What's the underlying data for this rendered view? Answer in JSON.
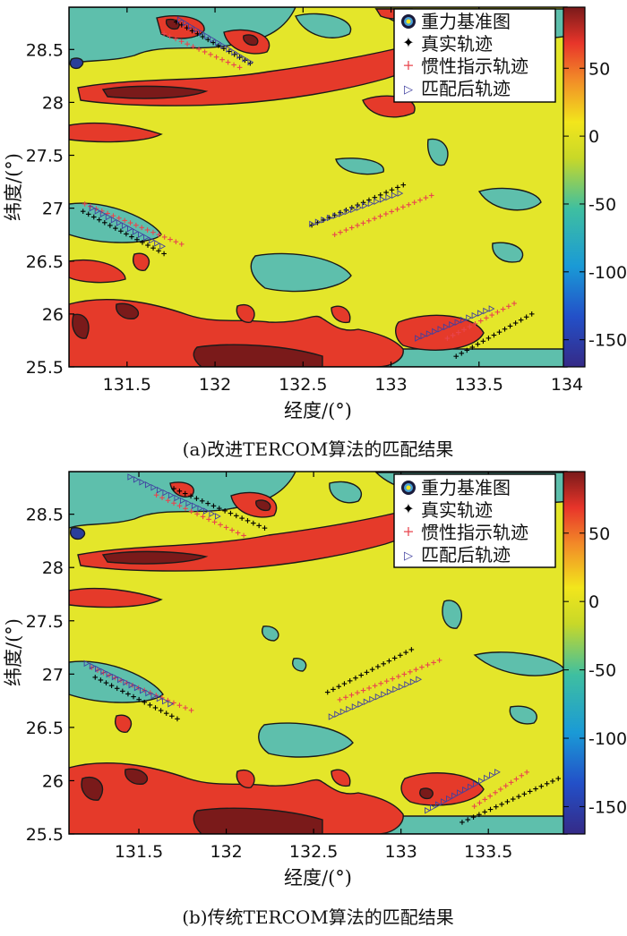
{
  "chart_data": [
    {
      "type": "contour",
      "title": "",
      "caption": "(a)改进TERCOM算法的匹配结果",
      "xlabel": "经度/(°)",
      "ylabel": "纬度/(°)",
      "xlim": [
        131.17,
        134.0
      ],
      "ylim": [
        25.5,
        28.9
      ],
      "xticks": [
        131.5,
        132,
        132.5,
        133,
        133.5,
        134
      ],
      "xtick_labels": [
        "131.5",
        "132",
        "132.5",
        "133",
        "133.5",
        "134"
      ],
      "yticks": [
        25.5,
        26,
        26.5,
        27,
        27.5,
        28,
        28.5
      ],
      "ytick_labels": [
        "25.5",
        "26",
        "26.5",
        "27",
        "27.5",
        "28",
        "28.5"
      ],
      "colorbar": {
        "ticks": [
          50,
          0,
          -50,
          -100,
          -150
        ],
        "tick_labels": [
          "50",
          "0",
          "-50",
          "-100",
          "-150"
        ],
        "range": [
          -170,
          95
        ]
      },
      "legend": {
        "placement": "top-right",
        "entries": [
          "重力基准图",
          "真实轨迹",
          "惯性指示轨迹",
          "匹配后轨迹"
        ]
      },
      "series": [
        {
          "name": "真实轨迹",
          "marker": "+",
          "color": "#000000",
          "segments": [
            [
              [
                131.78,
                28.76
              ],
              [
                132.2,
                28.37
              ]
            ],
            [
              [
                131.25,
                26.97
              ],
              [
                131.71,
                26.57
              ]
            ],
            [
              [
                132.55,
                26.84
              ],
              [
                133.07,
                27.22
              ]
            ],
            [
              [
                133.37,
                25.6
              ],
              [
                133.8,
                26.0
              ]
            ]
          ]
        },
        {
          "name": "惯性指示轨迹",
          "marker": "+",
          "color": "#e8454e",
          "segments": [
            [
              [
                131.71,
                28.65
              ],
              [
                132.14,
                28.33
              ]
            ],
            [
              [
                131.26,
                27.04
              ],
              [
                131.81,
                26.66
              ]
            ],
            [
              [
                132.68,
                26.75
              ],
              [
                133.23,
                27.12
              ]
            ],
            [
              [
                133.32,
                25.77
              ],
              [
                133.7,
                26.1
              ]
            ]
          ]
        },
        {
          "name": "匹配后轨迹",
          "marker": "triangle-right",
          "color": "#4040a0",
          "segments": [
            [
              [
                131.8,
                28.78
              ],
              [
                132.2,
                28.38
              ]
            ],
            [
              [
                131.3,
                27.0
              ],
              [
                131.7,
                26.64
              ]
            ],
            [
              [
                132.55,
                26.85
              ],
              [
                133.05,
                27.14
              ]
            ],
            [
              [
                133.15,
                25.77
              ],
              [
                133.57,
                26.05
              ]
            ]
          ]
        }
      ]
    },
    {
      "type": "contour",
      "title": "",
      "caption": "(b)传统TERCOM算法的匹配结果",
      "xlabel": "经度/(°)",
      "ylabel": "纬度/(°)",
      "xlim": [
        131.1,
        133.95
      ],
      "ylim": [
        25.5,
        28.9
      ],
      "xticks": [
        131.5,
        132,
        132.5,
        133,
        133.5
      ],
      "xtick_labels": [
        "131.5",
        "132",
        "132.5",
        "133",
        "133.5"
      ],
      "yticks": [
        25.5,
        26,
        26.5,
        27,
        27.5,
        28,
        28.5
      ],
      "ytick_labels": [
        "25.5",
        "26",
        "26.5",
        "27",
        "27.5",
        "28",
        "28.5"
      ],
      "colorbar": {
        "ticks": [
          50,
          0,
          -50,
          -100,
          -150
        ],
        "tick_labels": [
          "50",
          "0",
          "-50",
          "-100",
          "-150"
        ],
        "range": [
          -170,
          95
        ]
      },
      "legend": {
        "placement": "top-right",
        "entries": [
          "重力基准图",
          "真实轨迹",
          "惯性指示轨迹",
          "匹配后轨迹"
        ]
      },
      "series": [
        {
          "name": "真实轨迹",
          "marker": "+",
          "color": "#000000",
          "segments": [
            [
              [
                131.7,
                28.74
              ],
              [
                132.22,
                28.37
              ]
            ],
            [
              [
                131.25,
                26.97
              ],
              [
                131.72,
                26.58
              ]
            ],
            [
              [
                132.58,
                26.83
              ],
              [
                133.06,
                27.23
              ]
            ],
            [
              [
                133.35,
                25.61
              ],
              [
                133.9,
                26.02
              ]
            ]
          ]
        },
        {
          "name": "惯性指示轨迹",
          "marker": "+",
          "color": "#e8454e",
          "segments": [
            [
              [
                131.6,
                28.68
              ],
              [
                132.1,
                28.3
              ]
            ],
            [
              [
                131.23,
                27.06
              ],
              [
                131.8,
                26.66
              ]
            ],
            [
              [
                132.65,
                26.76
              ],
              [
                133.22,
                27.13
              ]
            ],
            [
              [
                133.42,
                25.76
              ],
              [
                133.72,
                26.08
              ]
            ]
          ]
        },
        {
          "name": "匹配后轨迹",
          "marker": "triangle-right",
          "color": "#4040a0",
          "segments": [
            [
              [
                131.45,
                28.85
              ],
              [
                131.95,
                28.48
              ]
            ],
            [
              [
                131.2,
                27.1
              ],
              [
                131.68,
                26.72
              ]
            ],
            [
              [
                132.6,
                26.6
              ],
              [
                133.1,
                26.95
              ]
            ],
            [
              [
                133.15,
                25.72
              ],
              [
                133.55,
                26.08
              ]
            ]
          ]
        }
      ]
    }
  ]
}
